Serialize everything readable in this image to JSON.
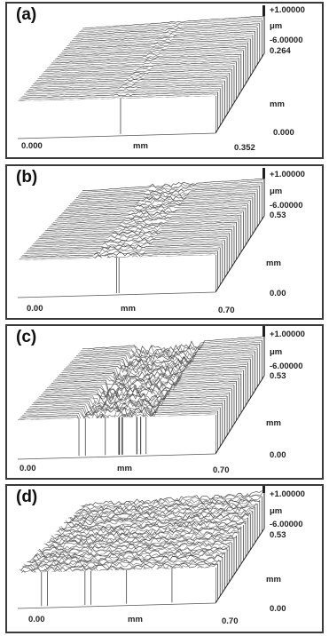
{
  "panels": [
    {
      "label": "(a)",
      "z_max": "+1.00000",
      "z_unit": "μm",
      "z_min": "-6.00000",
      "y_max": "0.264",
      "y_unit": "mm",
      "y_min": "0.000",
      "x_min": "0.000",
      "x_unit": "mm",
      "x_max": "0.352"
    },
    {
      "label": "(b)",
      "z_max": "+1.00000",
      "z_unit": "μm",
      "z_min": "-6.00000",
      "y_max": "0.53",
      "y_unit": "mm",
      "y_min": "0.00",
      "x_min": "0.00",
      "x_unit": "mm",
      "x_max": "0.70"
    },
    {
      "label": "(c)",
      "z_max": "+1.00000",
      "z_unit": "μm",
      "z_min": "-6.00000",
      "y_max": "0.53",
      "y_unit": "mm",
      "y_min": "0.00",
      "x_min": "0.00",
      "x_unit": "mm",
      "x_max": "0.70"
    },
    {
      "label": "(d)",
      "z_max": "+1.00000",
      "z_unit": "μm",
      "z_min": "-6.00000",
      "y_max": "0.53",
      "y_unit": "mm",
      "y_min": "0.00",
      "x_min": "0.00",
      "x_unit": "mm",
      "x_max": "0.70"
    }
  ]
}
